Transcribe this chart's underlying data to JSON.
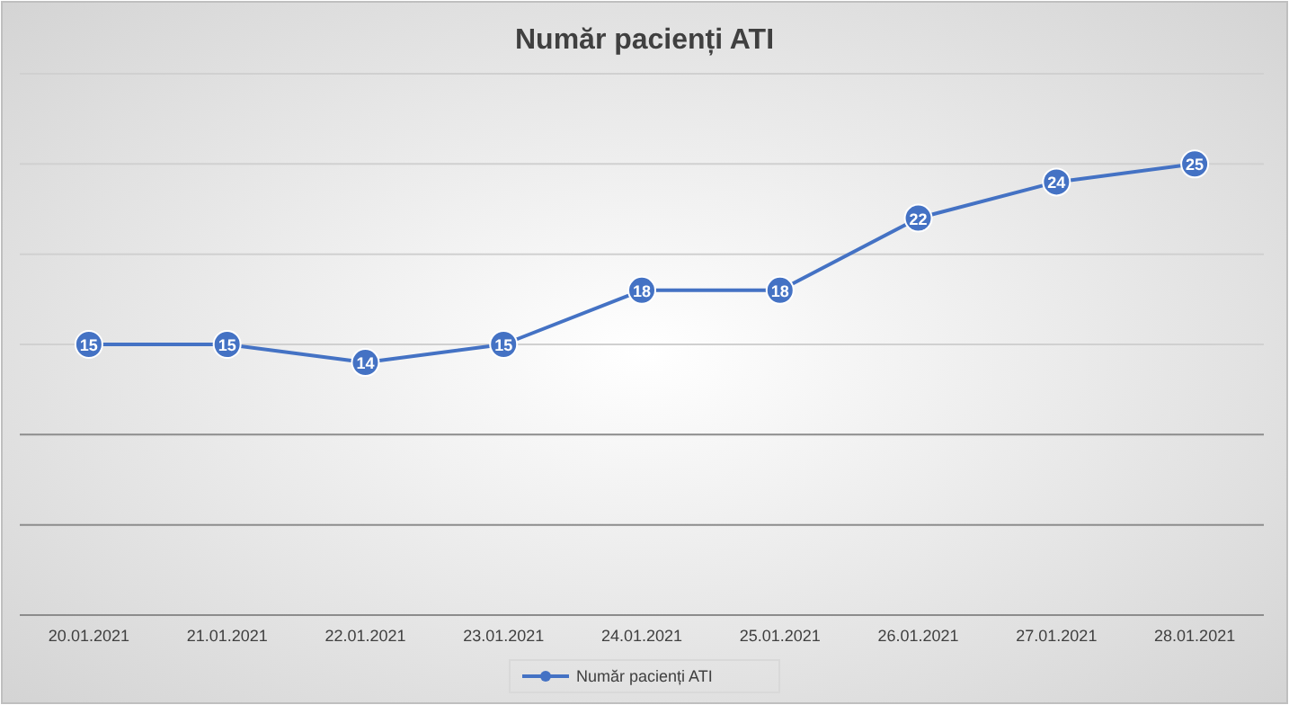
{
  "chart_data": {
    "type": "line",
    "title": "Număr pacienți ATI",
    "categories": [
      "20.01.2021",
      "21.01.2021",
      "22.01.2021",
      "23.01.2021",
      "24.01.2021",
      "25.01.2021",
      "26.01.2021",
      "27.01.2021",
      "28.01.2021"
    ],
    "series": [
      {
        "name": "Număr pacienți ATI",
        "color": "#4472c4",
        "values": [
          15,
          15,
          14,
          15,
          18,
          18,
          22,
          24,
          25
        ]
      }
    ],
    "ylim": [
      0,
      30
    ],
    "yticks": [
      {
        "value": 0,
        "label": null
      },
      {
        "value": 5,
        "label": null
      },
      {
        "value": 10,
        "label": null
      },
      {
        "value": 15,
        "label": null
      },
      {
        "value": 20,
        "label": null
      },
      {
        "value": 25,
        "label": null
      },
      {
        "value": 30,
        "label": null
      }
    ],
    "tick_labels": "x",
    "grid": "y",
    "data_labels": true,
    "marker": "circle",
    "line_style": "solid",
    "legend": "bottom"
  }
}
